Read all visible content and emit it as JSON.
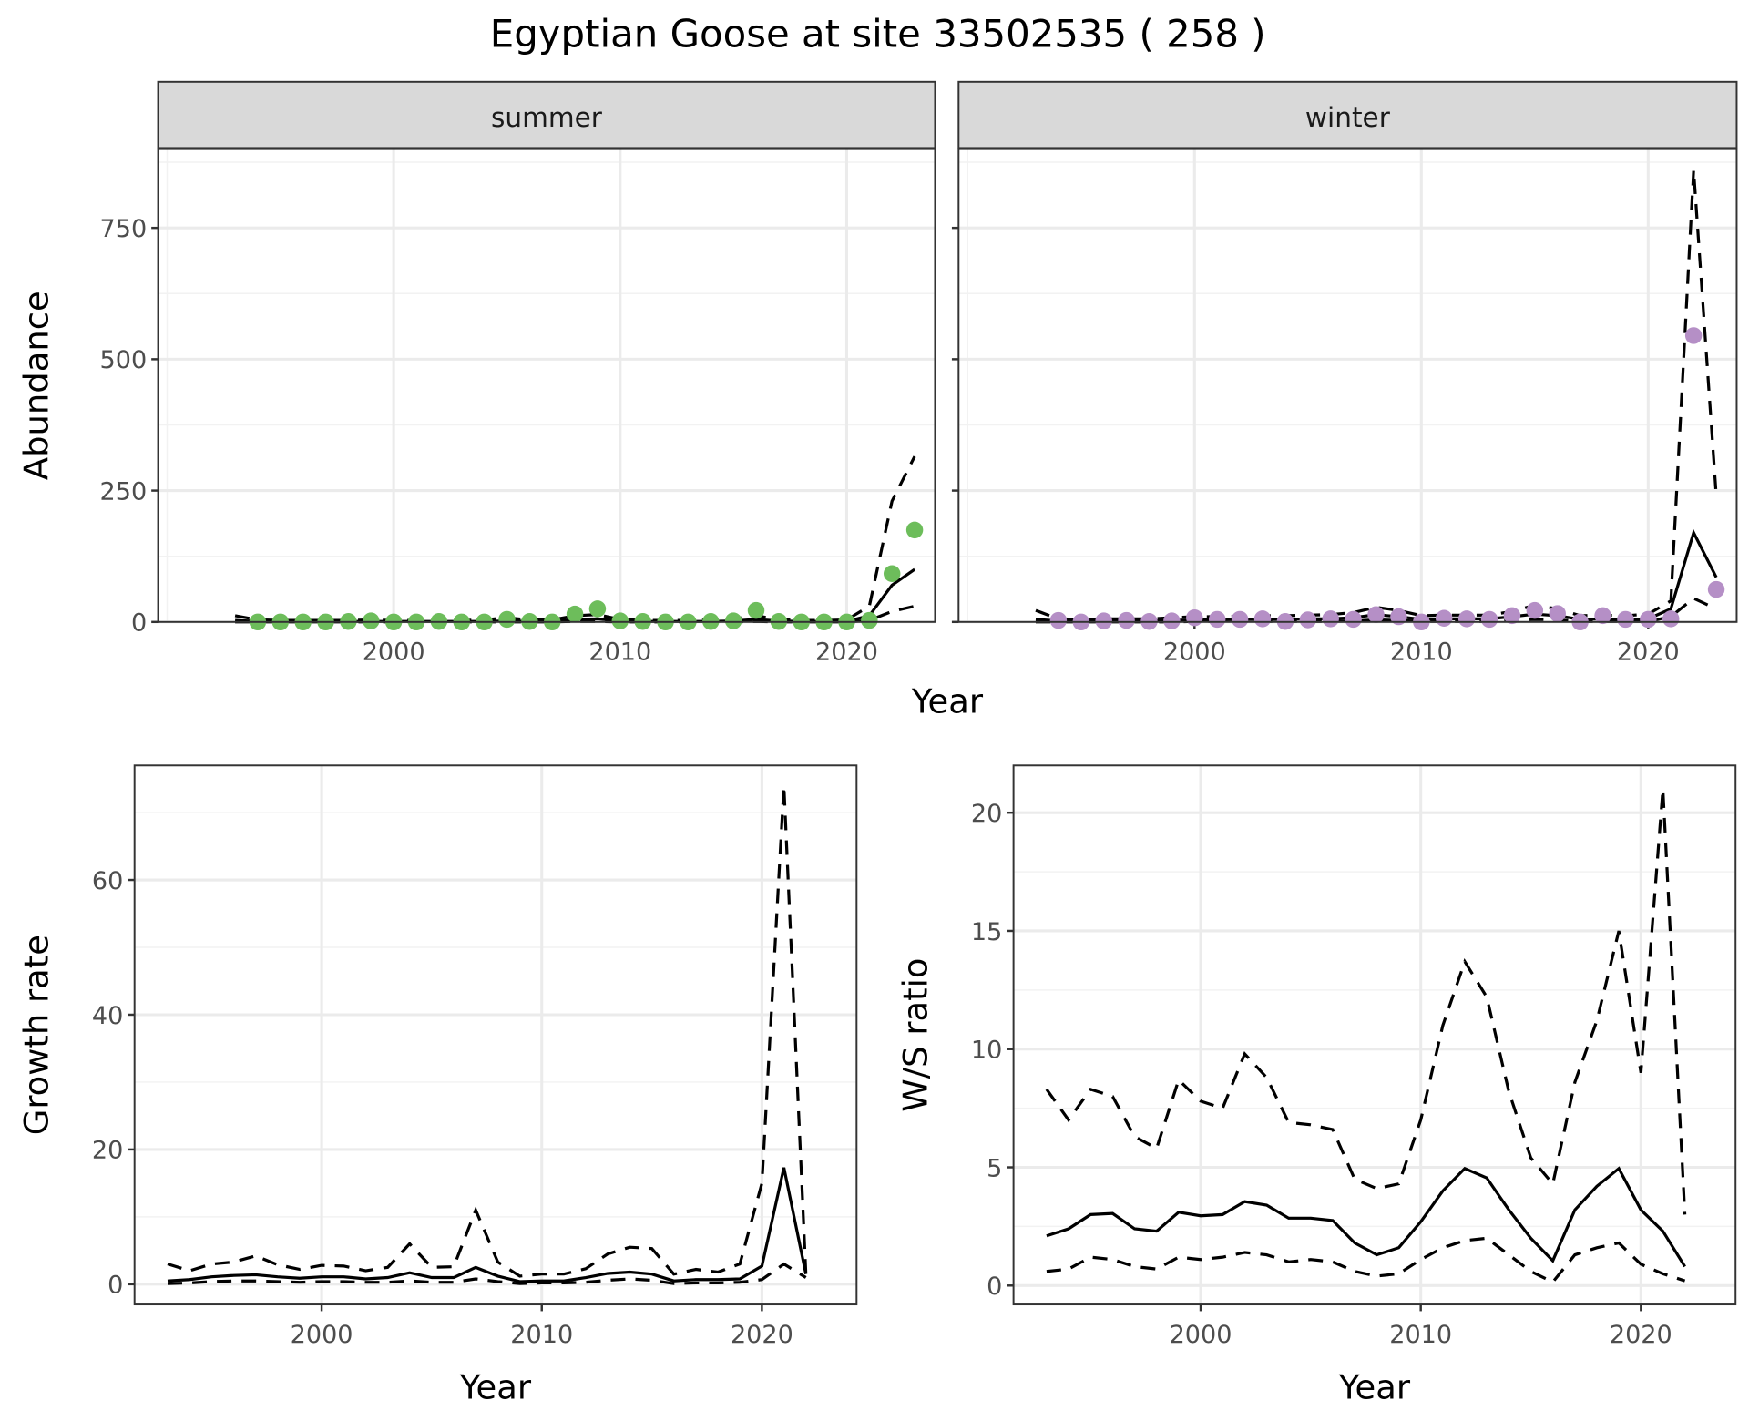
{
  "chart_data": {
    "title": "Egyptian Goose at site 33502535 ( 258 )",
    "panels": [
      {
        "id": "summer",
        "type": "line+scatter",
        "strip": "summer",
        "xlabel": "",
        "ylabel": "Abundance",
        "ylim": [
          0,
          900
        ],
        "yticks": [
          0,
          250,
          500,
          750
        ],
        "xticks": [
          2000,
          2010,
          2020
        ],
        "points": {
          "name": "observed",
          "color": "#6dbd5b",
          "x": [
            1994,
            1995,
            1996,
            1997,
            1998,
            1999,
            2000,
            2001,
            2002,
            2003,
            2004,
            2005,
            2006,
            2007,
            2008,
            2009,
            2010,
            2011,
            2012,
            2013,
            2014,
            2015,
            2016,
            2017,
            2018,
            2019,
            2020,
            2021,
            2022,
            2023
          ],
          "y": [
            0,
            0,
            0,
            0,
            1,
            2,
            0,
            0,
            1,
            0,
            0,
            5,
            1,
            0,
            15,
            25,
            2,
            1,
            0,
            0,
            1,
            2,
            22,
            1,
            0,
            0,
            0,
            3,
            92,
            175
          ]
        },
        "lines_x": [
          1993,
          1994,
          1995,
          1996,
          1997,
          1998,
          1999,
          2000,
          2001,
          2002,
          2003,
          2004,
          2005,
          2006,
          2007,
          2008,
          2009,
          2010,
          2011,
          2012,
          2013,
          2014,
          2015,
          2016,
          2017,
          2018,
          2019,
          2020,
          2021,
          2022,
          2023
        ],
        "mean": [
          3,
          1,
          1,
          1,
          1,
          1,
          1,
          1,
          1,
          1,
          1,
          1,
          2,
          1,
          1,
          5,
          6,
          2,
          1,
          1,
          1,
          1,
          2,
          5,
          2,
          1,
          1,
          1,
          12,
          70,
          100
        ],
        "upper": [
          12,
          4,
          3,
          3,
          3,
          3,
          4,
          3,
          3,
          3,
          3,
          4,
          8,
          4,
          4,
          12,
          14,
          5,
          3,
          3,
          3,
          4,
          6,
          12,
          5,
          3,
          3,
          4,
          30,
          230,
          315
        ],
        "lower": [
          0,
          0,
          0,
          0,
          0,
          0,
          0,
          0,
          0,
          0,
          0,
          0,
          0,
          0,
          0,
          1,
          1,
          0,
          0,
          0,
          0,
          0,
          0,
          1,
          0,
          0,
          0,
          0,
          3,
          20,
          30
        ]
      },
      {
        "id": "winter",
        "type": "line+scatter",
        "strip": "winter",
        "xlabel": "Year",
        "ylabel": "",
        "ylim": [
          0,
          900
        ],
        "yticks": [
          0,
          250,
          500,
          750
        ],
        "xticks": [
          2000,
          2010,
          2020
        ],
        "points": {
          "name": "observed",
          "color": "#b58fc6",
          "x": [
            1994,
            1995,
            1996,
            1997,
            1998,
            1999,
            2000,
            2001,
            2002,
            2003,
            2004,
            2005,
            2006,
            2007,
            2008,
            2009,
            2010,
            2011,
            2012,
            2013,
            2014,
            2015,
            2016,
            2017,
            2018,
            2019,
            2020,
            2021,
            2022,
            2023
          ],
          "y": [
            3,
            0,
            2,
            3,
            1,
            2,
            8,
            5,
            5,
            6,
            1,
            4,
            6,
            5,
            14,
            10,
            0,
            7,
            6,
            5,
            12,
            22,
            16,
            0,
            12,
            5,
            5,
            6,
            545,
            62
          ]
        },
        "lines_x": [
          1993,
          1994,
          1995,
          1996,
          1997,
          1998,
          1999,
          2000,
          2001,
          2002,
          2003,
          2004,
          2005,
          2006,
          2007,
          2008,
          2009,
          2010,
          2011,
          2012,
          2013,
          2014,
          2015,
          2016,
          2017,
          2018,
          2019,
          2020,
          2021,
          2022,
          2023
        ],
        "mean": [
          5,
          2,
          2,
          2,
          2,
          2,
          3,
          4,
          4,
          5,
          5,
          5,
          6,
          6,
          8,
          14,
          10,
          5,
          6,
          6,
          6,
          10,
          15,
          12,
          5,
          6,
          5,
          6,
          25,
          170,
          85
        ],
        "upper": [
          22,
          6,
          5,
          6,
          6,
          6,
          8,
          10,
          10,
          11,
          12,
          12,
          13,
          14,
          18,
          28,
          22,
          12,
          13,
          13,
          13,
          20,
          32,
          25,
          12,
          13,
          12,
          15,
          40,
          860,
          240
        ],
        "lower": [
          0,
          0,
          0,
          0,
          0,
          0,
          0,
          1,
          1,
          1,
          1,
          1,
          1,
          1,
          2,
          4,
          3,
          1,
          1,
          1,
          1,
          3,
          5,
          4,
          1,
          1,
          1,
          1,
          10,
          45,
          25
        ]
      },
      {
        "id": "growth",
        "type": "line",
        "strip": "",
        "xlabel": "Year",
        "ylabel": "Growth rate",
        "ylim": [
          -3,
          77
        ],
        "yticks": [
          0,
          20,
          40,
          60
        ],
        "xticks": [
          2000,
          2010,
          2020
        ],
        "lines_x": [
          1993,
          1994,
          1995,
          1996,
          1997,
          1998,
          1999,
          2000,
          2001,
          2002,
          2003,
          2004,
          2005,
          2006,
          2007,
          2008,
          2009,
          2010,
          2011,
          2012,
          2013,
          2014,
          2015,
          2016,
          2017,
          2018,
          2019,
          2020,
          2021,
          2022
        ],
        "mean": [
          0.5,
          0.7,
          1.1,
          1.3,
          1.4,
          1.1,
          0.9,
          1.1,
          1.1,
          0.8,
          1.0,
          1.7,
          1.0,
          1.0,
          2.5,
          1.2,
          0.4,
          0.5,
          0.5,
          1.0,
          1.6,
          1.8,
          1.5,
          0.5,
          0.7,
          0.7,
          0.8,
          2.7,
          17.3,
          1.5
        ],
        "upper": [
          3,
          2,
          3,
          3.3,
          4.2,
          2.9,
          2.2,
          2.8,
          2.7,
          2.0,
          2.5,
          6,
          2.5,
          2.6,
          11,
          3.3,
          1.2,
          1.5,
          1.5,
          2.3,
          4.5,
          5.5,
          5.3,
          1.5,
          2.2,
          1.8,
          3,
          15,
          74,
          1.5
        ],
        "lower": [
          0.1,
          0.2,
          0.4,
          0.5,
          0.5,
          0.4,
          0.3,
          0.4,
          0.4,
          0.3,
          0.3,
          0.5,
          0.3,
          0.3,
          0.8,
          0.4,
          0.1,
          0.2,
          0.2,
          0.3,
          0.6,
          0.8,
          0.6,
          0.1,
          0.2,
          0.2,
          0.3,
          0.7,
          3,
          1
        ]
      },
      {
        "id": "ratio",
        "type": "line",
        "strip": "",
        "xlabel": "Year",
        "ylabel": "W/S ratio",
        "ylim": [
          -0.8,
          22
        ],
        "yticks": [
          0,
          5,
          10,
          15,
          20
        ],
        "xticks": [
          2000,
          2010,
          2020
        ],
        "lines_x": [
          1993,
          1994,
          1995,
          1996,
          1997,
          1998,
          1999,
          2000,
          2001,
          2002,
          2003,
          2004,
          2005,
          2006,
          2007,
          2008,
          2009,
          2010,
          2011,
          2012,
          2013,
          2014,
          2015,
          2016,
          2017,
          2018,
          2019,
          2020,
          2021,
          2022
        ],
        "mean": [
          2.1,
          2.4,
          3.0,
          3.05,
          2.4,
          2.3,
          3.1,
          2.95,
          3.0,
          3.55,
          3.4,
          2.85,
          2.85,
          2.75,
          1.8,
          1.3,
          1.6,
          2.7,
          4.0,
          4.95,
          4.55,
          3.2,
          2.0,
          1.05,
          3.2,
          4.2,
          4.95,
          3.2,
          2.3,
          0.8
        ],
        "upper": [
          8.3,
          7.0,
          8.3,
          8.0,
          6.3,
          5.8,
          8.7,
          7.8,
          7.5,
          9.8,
          8.8,
          6.9,
          6.8,
          6.6,
          4.5,
          4.1,
          4.3,
          7.0,
          11.0,
          13.7,
          12.2,
          8.2,
          5.4,
          4.3,
          8.6,
          11.2,
          15.0,
          9.0,
          21.0,
          3.0
        ],
        "lower": [
          0.6,
          0.7,
          1.2,
          1.1,
          0.8,
          0.7,
          1.2,
          1.1,
          1.2,
          1.4,
          1.3,
          1.0,
          1.1,
          1.0,
          0.6,
          0.4,
          0.5,
          1.1,
          1.6,
          1.9,
          2.0,
          1.3,
          0.6,
          0.15,
          1.3,
          1.6,
          1.8,
          0.9,
          0.5,
          0.2
        ]
      }
    ]
  }
}
